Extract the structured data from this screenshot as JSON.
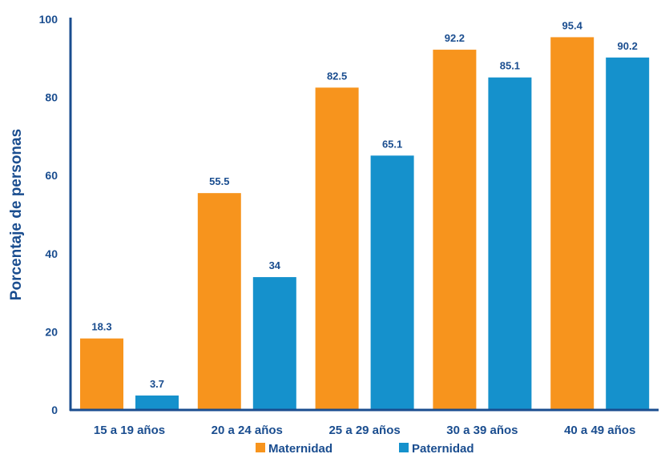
{
  "chart_data": {
    "type": "bar",
    "title": "",
    "xlabel": "",
    "ylabel": "Porcentaje de personas",
    "categories": [
      "15 a 19 años",
      "20 a 24 años",
      "25 a 29 años",
      "30 a 39 años",
      "40 a 49 años"
    ],
    "series": [
      {
        "name": "Maternidad",
        "color": "#f7941d",
        "values": [
          18.3,
          55.5,
          82.5,
          92.2,
          95.4
        ]
      },
      {
        "name": "Paternidad",
        "color": "#1591cc",
        "values": [
          3.7,
          34,
          65.1,
          85.1,
          90.2
        ]
      }
    ],
    "ylim": [
      0,
      100
    ],
    "yticks": [
      0,
      20,
      40,
      60,
      80,
      100
    ],
    "grid": false,
    "legend_position": "bottom-center",
    "axis_color": "#1a4d8f"
  }
}
